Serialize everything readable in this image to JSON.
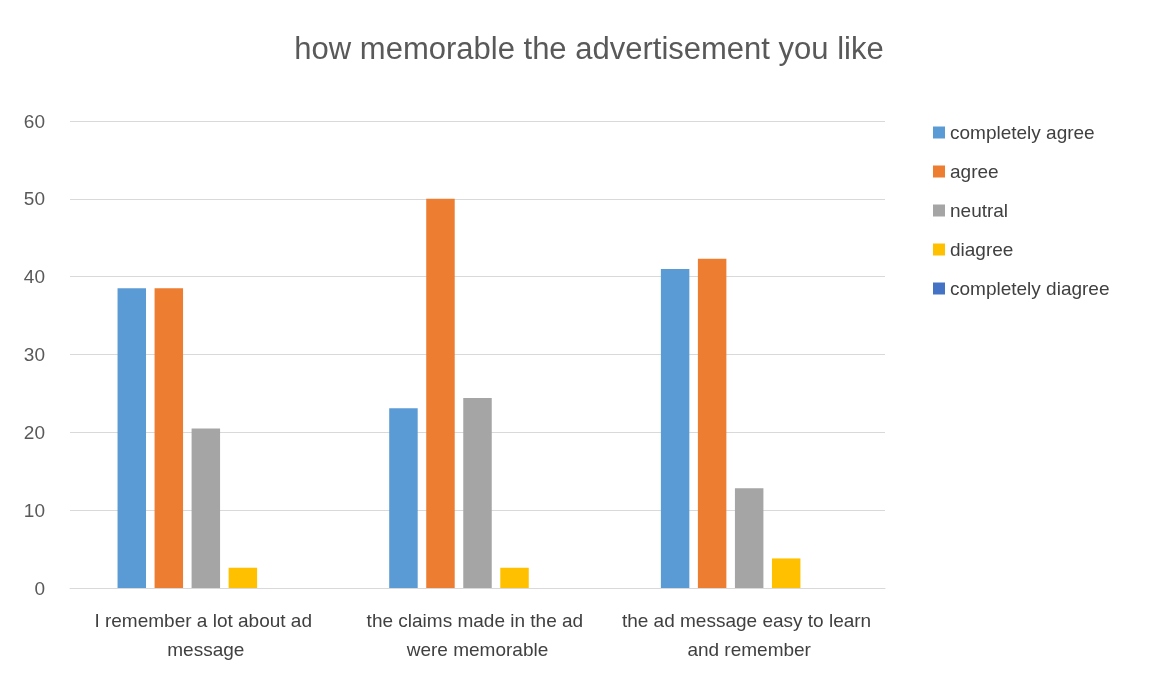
{
  "chart_data": {
    "type": "bar",
    "title": "how memorable the advertisement you like",
    "categories": [
      "I remember a lot about ad message",
      "the claims made in the ad were memorable",
      "the ad message easy to learn and remember"
    ],
    "series": [
      {
        "name": "completely agree",
        "color": "#5b9bd5",
        "values": [
          38.5,
          23.1,
          41.0
        ]
      },
      {
        "name": "agree",
        "color": "#ed7d31",
        "values": [
          38.5,
          50.0,
          42.3
        ]
      },
      {
        "name": "neutral",
        "color": "#a5a5a5",
        "values": [
          20.5,
          24.4,
          12.8
        ]
      },
      {
        "name": "diagree",
        "color": "#ffc000",
        "values": [
          2.6,
          2.6,
          3.8
        ]
      },
      {
        "name": "completely diagree",
        "color": "#4472c4",
        "values": [
          0,
          0,
          0
        ]
      }
    ],
    "ylim": [
      0,
      60
    ],
    "yticks": [
      0,
      10,
      20,
      30,
      40,
      50,
      60
    ],
    "grid": "y",
    "legend": "right"
  }
}
